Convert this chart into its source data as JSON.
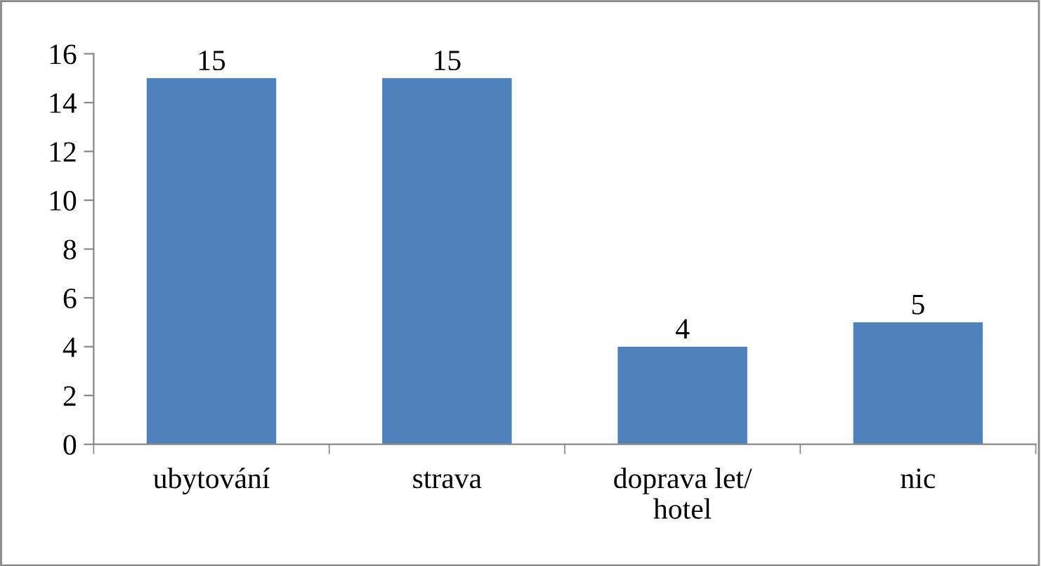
{
  "chart_data": {
    "type": "bar",
    "categories": [
      "ubytování",
      "strava",
      "doprava let/\nhotel",
      "nic"
    ],
    "values": [
      15,
      15,
      4,
      5
    ],
    "color": "#4f81bd",
    "ylim": [
      0,
      16
    ],
    "yticks": [
      0,
      2,
      4,
      6,
      8,
      10,
      12,
      14,
      16
    ],
    "data_labels": true,
    "grid": false,
    "legend": false
  }
}
